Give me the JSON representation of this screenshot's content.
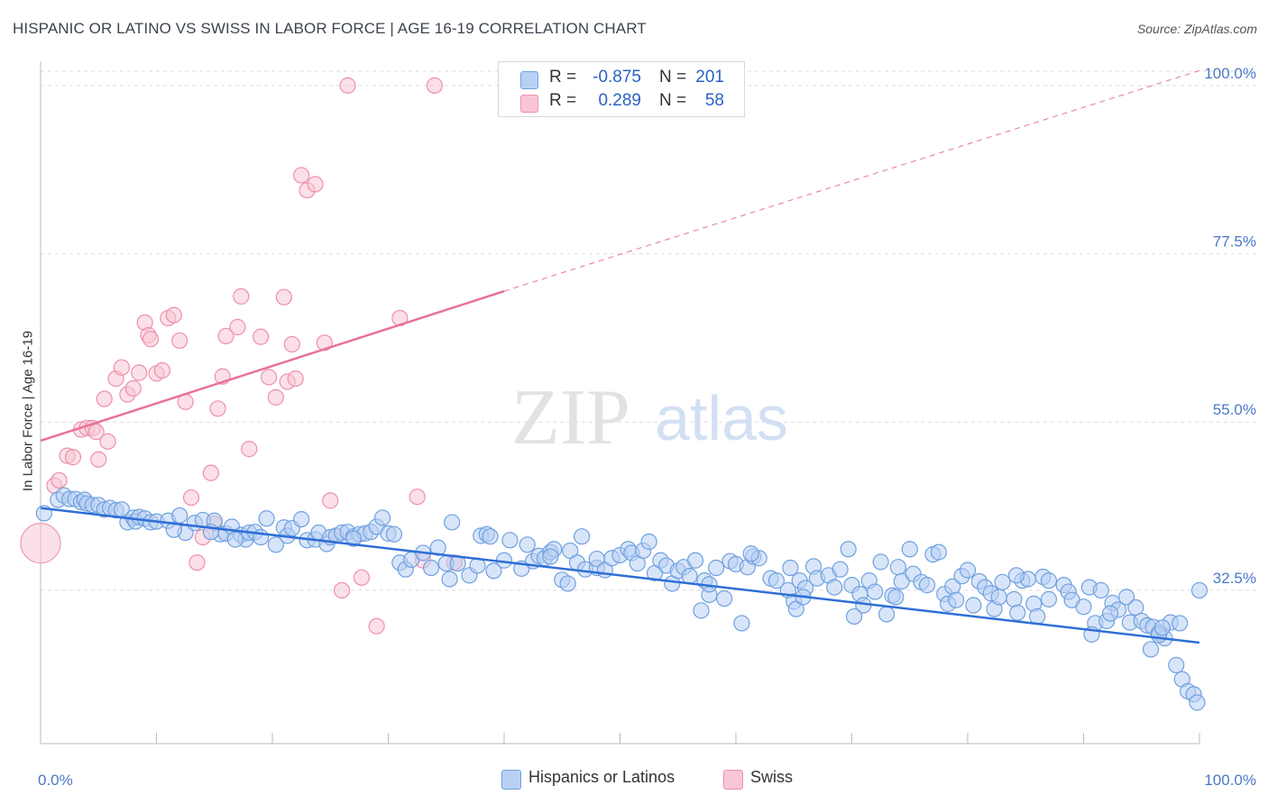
{
  "title": "HISPANIC OR LATINO VS SWISS IN LABOR FORCE | AGE 16-19 CORRELATION CHART",
  "source": "Source: ZipAtlas.com",
  "watermark": {
    "zip": "ZIP",
    "atlas": "atlas"
  },
  "legend": {
    "r_label": "R =",
    "n_label": "N =",
    "rows": [
      {
        "name": "Hispanics or Latinos",
        "r": "-0.875",
        "n": "201",
        "color": "#6fa0e0",
        "fill": "#b8d0f4"
      },
      {
        "name": "Swiss",
        "r": "0.289",
        "n": "58",
        "color": "#ee8fac",
        "fill": "#f8c6d4"
      }
    ]
  },
  "chart_data": {
    "type": "scatter",
    "title": "HISPANIC OR LATINO VS SWISS IN LABOR FORCE | AGE 16-19 CORRELATION CHART",
    "xlabel": "",
    "ylabel": "In Labor Force | Age 16-19",
    "xlim": [
      0,
      100
    ],
    "ylim": [
      12,
      103
    ],
    "x_tick_labels": [
      "0.0%",
      "100.0%"
    ],
    "y_ticks": [
      {
        "value": 32.5,
        "label": "32.5%"
      },
      {
        "value": 55.0,
        "label": "55.0%"
      },
      {
        "value": 77.5,
        "label": "77.5%"
      },
      {
        "value": 100.0,
        "label": "100.0%"
      }
    ],
    "grid": true,
    "legend_position": "top-center",
    "series": [
      {
        "name": "Hispanics or Latinos",
        "color": "#6fa0e0",
        "trend": {
          "x": [
            0,
            100
          ],
          "y": [
            43.5,
            25.5
          ],
          "color": "#2f6fd6"
        },
        "points": [
          [
            0.3,
            42.8
          ],
          [
            1.5,
            44.6
          ],
          [
            2,
            45.2
          ],
          [
            2.5,
            44.7
          ],
          [
            3,
            44.7
          ],
          [
            3.5,
            44.3
          ],
          [
            3.8,
            44.6
          ],
          [
            4,
            44.1
          ],
          [
            4.5,
            43.9
          ],
          [
            5,
            43.9
          ],
          [
            5.5,
            43.3
          ],
          [
            6,
            43.5
          ],
          [
            6.5,
            43.2
          ],
          [
            7,
            43.3
          ],
          [
            7.5,
            41.6
          ],
          [
            8,
            42.2
          ],
          [
            8.2,
            41.7
          ],
          [
            8.5,
            42.3
          ],
          [
            9,
            42.1
          ],
          [
            9.5,
            41.6
          ],
          [
            10,
            41.7
          ],
          [
            11,
            41.8
          ],
          [
            12,
            42.5
          ],
          [
            12.5,
            40.2
          ],
          [
            13.3,
            41.5
          ],
          [
            14,
            41.9
          ],
          [
            15,
            41.8
          ],
          [
            15.5,
            40.0
          ],
          [
            16,
            40.1
          ],
          [
            16.5,
            41.0
          ],
          [
            17.3,
            39.9
          ],
          [
            17.7,
            39.3
          ],
          [
            18,
            40.2
          ],
          [
            18.5,
            40.3
          ],
          [
            19,
            39.6
          ],
          [
            19.5,
            42.1
          ],
          [
            20.3,
            38.6
          ],
          [
            21,
            40.9
          ],
          [
            21.3,
            39.8
          ],
          [
            21.7,
            40.8
          ],
          [
            22.5,
            42.0
          ],
          [
            23,
            39.2
          ],
          [
            23.7,
            39.3
          ],
          [
            24,
            40.2
          ],
          [
            24.7,
            38.7
          ],
          [
            25,
            39.6
          ],
          [
            25.5,
            39.8
          ],
          [
            26,
            40.2
          ],
          [
            26.5,
            40.3
          ],
          [
            27,
            39.7
          ],
          [
            27.5,
            40.0
          ],
          [
            28,
            40.1
          ],
          [
            28.5,
            40.3
          ],
          [
            29,
            41.0
          ],
          [
            29.5,
            42.2
          ],
          [
            30,
            40.1
          ],
          [
            30.5,
            40.0
          ],
          [
            31,
            36.2
          ],
          [
            31.5,
            35.3
          ],
          [
            32,
            36.6
          ],
          [
            33,
            37.5
          ],
          [
            33.7,
            35.5
          ],
          [
            34.3,
            38.2
          ],
          [
            35,
            36.1
          ],
          [
            35.5,
            41.6
          ],
          [
            35.3,
            34.0
          ],
          [
            36,
            36.1
          ],
          [
            37,
            34.5
          ],
          [
            37.7,
            35.8
          ],
          [
            38,
            39.8
          ],
          [
            38.5,
            40.0
          ],
          [
            39.1,
            35.1
          ],
          [
            40,
            36.5
          ],
          [
            40.5,
            39.2
          ],
          [
            41.5,
            35.4
          ],
          [
            42,
            38.6
          ],
          [
            42.5,
            36.4
          ],
          [
            43,
            37.1
          ],
          [
            43.5,
            36.8
          ],
          [
            44,
            37.6
          ],
          [
            44.3,
            38.0
          ],
          [
            45,
            33.9
          ],
          [
            45.5,
            33.4
          ],
          [
            45.7,
            37.8
          ],
          [
            46.3,
            36.2
          ],
          [
            46.7,
            39.7
          ],
          [
            47,
            35.3
          ],
          [
            48,
            35.5
          ],
          [
            48,
            36.7
          ],
          [
            48.7,
            35.2
          ],
          [
            49.3,
            36.8
          ],
          [
            50,
            37.2
          ],
          [
            50.7,
            38.0
          ],
          [
            51,
            37.5
          ],
          [
            51.5,
            36.1
          ],
          [
            52,
            37.8
          ],
          [
            53,
            34.8
          ],
          [
            53.5,
            36.5
          ],
          [
            54,
            35.8
          ],
          [
            54.5,
            33.4
          ],
          [
            55,
            35.1
          ],
          [
            55.5,
            35.6
          ],
          [
            56,
            34.4
          ],
          [
            56.5,
            36.5
          ],
          [
            57,
            29.8
          ],
          [
            57.3,
            33.8
          ],
          [
            57.7,
            31.9
          ],
          [
            58.3,
            35.5
          ],
          [
            59,
            31.4
          ],
          [
            59.5,
            36.4
          ],
          [
            60,
            36.0
          ],
          [
            60.5,
            28.1
          ],
          [
            61,
            35.6
          ],
          [
            61.5,
            37.0
          ],
          [
            62,
            36.8
          ],
          [
            63,
            34.1
          ],
          [
            63.5,
            33.8
          ],
          [
            64.5,
            32.5
          ],
          [
            64.7,
            35.5
          ],
          [
            65,
            31.0
          ],
          [
            65.2,
            30.0
          ],
          [
            65.5,
            33.8
          ],
          [
            66,
            32.8
          ],
          [
            66.7,
            35.7
          ],
          [
            67,
            34.1
          ],
          [
            68,
            34.5
          ],
          [
            68.5,
            32.9
          ],
          [
            69,
            35.3
          ],
          [
            69.7,
            38.0
          ],
          [
            70,
            33.2
          ],
          [
            70.7,
            32.0
          ],
          [
            71,
            30.5
          ],
          [
            71.5,
            33.8
          ],
          [
            72,
            32.3
          ],
          [
            72.5,
            36.3
          ],
          [
            73,
            29.3
          ],
          [
            73.5,
            31.8
          ],
          [
            74,
            35.6
          ],
          [
            74.3,
            33.7
          ],
          [
            75,
            38.0
          ],
          [
            75.3,
            34.7
          ],
          [
            76,
            33.6
          ],
          [
            76.5,
            33.2
          ],
          [
            77,
            37.3
          ],
          [
            77.5,
            37.6
          ],
          [
            78,
            32.0
          ],
          [
            78.3,
            30.7
          ],
          [
            78.7,
            33.0
          ],
          [
            79.5,
            34.4
          ],
          [
            80,
            35.2
          ],
          [
            80.5,
            30.5
          ],
          [
            81,
            33.7
          ],
          [
            81.5,
            32.9
          ],
          [
            82,
            32.1
          ],
          [
            82.3,
            30.0
          ],
          [
            82.7,
            31.6
          ],
          [
            83,
            33.6
          ],
          [
            84,
            31.3
          ],
          [
            84.3,
            29.5
          ],
          [
            84.7,
            33.8
          ],
          [
            85.2,
            34.0
          ],
          [
            85.7,
            30.7
          ],
          [
            86.5,
            34.3
          ],
          [
            87,
            33.8
          ],
          [
            87,
            31.3
          ],
          [
            88.3,
            33.2
          ],
          [
            88.7,
            32.3
          ],
          [
            89,
            31.2
          ],
          [
            90,
            30.3
          ],
          [
            90.5,
            32.9
          ],
          [
            91,
            28.1
          ],
          [
            91.5,
            32.5
          ],
          [
            92,
            28.4
          ],
          [
            92.5,
            30.8
          ],
          [
            93,
            29.9
          ],
          [
            93.7,
            31.6
          ],
          [
            94,
            28.2
          ],
          [
            94.5,
            30.2
          ],
          [
            95,
            28.4
          ],
          [
            95.5,
            27.8
          ],
          [
            96,
            27.6
          ],
          [
            96.5,
            26.8
          ],
          [
            97,
            26.1
          ],
          [
            97.5,
            28.2
          ],
          [
            98,
            22.5
          ],
          [
            98.5,
            20.6
          ],
          [
            99,
            19.0
          ],
          [
            99.5,
            18.6
          ],
          [
            99.8,
            17.5
          ],
          [
            100,
            32.5
          ],
          [
            95.8,
            24.6
          ],
          [
            96.5,
            26.5
          ],
          [
            98.3,
            28.1
          ],
          [
            44.0,
            37.0
          ],
          [
            27,
            39.4
          ],
          [
            11.5,
            40.6
          ],
          [
            14.7,
            40.3
          ],
          [
            16.8,
            39.3
          ],
          [
            61.3,
            37.4
          ],
          [
            70.2,
            29.0
          ],
          [
            73.8,
            31.6
          ],
          [
            79,
            31.2
          ],
          [
            86,
            29.0
          ],
          [
            92.3,
            29.4
          ],
          [
            38.8,
            39.7
          ],
          [
            52.5,
            39.0
          ],
          [
            57.7,
            33.3
          ],
          [
            65.8,
            31.6
          ],
          [
            90.7,
            26.6
          ],
          [
            96.8,
            27.5
          ],
          [
            84.2,
            34.5
          ]
        ]
      },
      {
        "name": "Swiss",
        "color": "#ee8fac",
        "trend": {
          "x": [
            0,
            40
          ],
          "y": [
            52.5,
            72.5
          ],
          "dashed_to": [
            100,
            102
          ],
          "color": "#e8729a"
        },
        "points": [
          [
            1.2,
            46.5
          ],
          [
            1.6,
            47.2
          ],
          [
            2.3,
            50.5
          ],
          [
            2.8,
            50.3
          ],
          [
            3.5,
            54.0
          ],
          [
            4,
            54.2
          ],
          [
            4.5,
            54.2
          ],
          [
            4.8,
            53.7
          ],
          [
            5,
            50.0
          ],
          [
            5.5,
            58.1
          ],
          [
            5.8,
            52.4
          ],
          [
            6.5,
            60.8
          ],
          [
            7,
            62.3
          ],
          [
            7.5,
            58.7
          ],
          [
            8,
            59.5
          ],
          [
            8.5,
            61.6
          ],
          [
            9,
            68.3
          ],
          [
            9.3,
            66.6
          ],
          [
            9.5,
            66.1
          ],
          [
            10,
            61.5
          ],
          [
            10.5,
            61.9
          ],
          [
            11,
            68.9
          ],
          [
            11.5,
            69.3
          ],
          [
            12,
            65.9
          ],
          [
            12.5,
            57.7
          ],
          [
            13,
            44.9
          ],
          [
            13.5,
            36.2
          ],
          [
            14,
            39.6
          ],
          [
            14.7,
            48.2
          ],
          [
            15,
            41.4
          ],
          [
            15.3,
            56.8
          ],
          [
            15.7,
            61.1
          ],
          [
            16,
            66.5
          ],
          [
            17,
            67.7
          ],
          [
            17.3,
            71.8
          ],
          [
            18,
            51.4
          ],
          [
            19,
            66.4
          ],
          [
            19.7,
            61.0
          ],
          [
            20.3,
            58.3
          ],
          [
            21,
            71.7
          ],
          [
            21.3,
            60.4
          ],
          [
            21.7,
            65.4
          ],
          [
            22,
            60.8
          ],
          [
            22.5,
            88.0
          ],
          [
            23,
            86.0
          ],
          [
            23.7,
            86.8
          ],
          [
            24.5,
            65.6
          ],
          [
            25,
            44.5
          ],
          [
            25.5,
            39.8
          ],
          [
            26,
            32.5
          ],
          [
            26.5,
            100.0
          ],
          [
            27.7,
            34.2
          ],
          [
            29,
            27.7
          ],
          [
            31,
            68.9
          ],
          [
            32.5,
            45.0
          ],
          [
            33,
            36.5
          ],
          [
            34,
            100.0
          ],
          [
            35.7,
            36.2
          ]
        ]
      }
    ]
  }
}
